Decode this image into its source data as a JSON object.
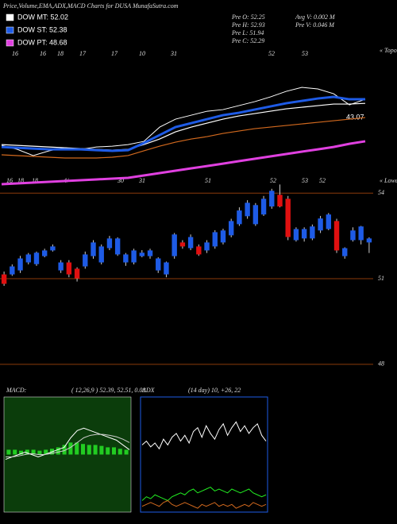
{
  "header": {
    "title": "Price,Volume,EMA,ADX,MACD Charts for DUSA MunafaSutra.com",
    "info": [
      "Pre  O: 52.25",
      "Pre  H: 52.93",
      "Pre  L: 51.94",
      "Pre  C: 52.29",
      "Avg  V: 0.002  M",
      "Pre  V: 0.046  M"
    ],
    "annotation": "43.07",
    "top_dates": [
      "16",
      "16",
      "18",
      "17",
      "17",
      "10",
      "31",
      "52",
      "53"
    ],
    "top_right": "« Topo",
    "bottom_dates": [
      "16",
      "18",
      "18",
      "4/",
      "30",
      "31",
      "51",
      "52",
      "53",
      "52"
    ],
    "bottom_right": "« Lowes"
  },
  "chart_data": [
    {
      "type": "line",
      "ylim": [
        44.69,
        56.93
      ],
      "series": [
        {
          "color": "#ffffff",
          "width": 1,
          "values": [
            48.32,
            47.97,
            47.42,
            47.84,
            48.11,
            47.97,
            48.18,
            48.25,
            48.39,
            48.67,
            49.93,
            50.63,
            50.98,
            51.33,
            51.47,
            51.82,
            52.17,
            52.59,
            53.08,
            53.43,
            53.29,
            52.87,
            51.89,
            52.38
          ]
        },
        {
          "color": "#d2691e",
          "width": 1.2,
          "values": [
            47.49,
            47.42,
            47.35,
            47.28,
            47.21,
            47.21,
            47.21,
            47.28,
            47.42,
            47.84,
            48.25,
            48.6,
            48.88,
            49.09,
            49.37,
            49.58,
            49.79,
            49.93,
            50.07,
            50.21,
            50.35,
            50.49,
            50.63,
            50.77
          ]
        },
        {
          "name": "DOW MT: 52.02",
          "color": "#ffffff",
          "width": 1.2,
          "values": [
            48.39,
            48.32,
            48.25,
            48.18,
            48.11,
            48.04,
            47.97,
            47.9,
            47.97,
            48.39,
            48.88,
            49.51,
            49.93,
            50.28,
            50.63,
            50.91,
            51.12,
            51.33,
            51.54,
            51.68,
            51.82,
            51.96,
            51.96,
            52.02
          ]
        },
        {
          "name": "DOW ST: 52.38",
          "color": "#1e5be6",
          "width": 3,
          "values": [
            48.18,
            48.11,
            48.04,
            47.97,
            47.97,
            47.97,
            47.9,
            47.84,
            47.9,
            48.53,
            49.23,
            49.93,
            50.28,
            50.63,
            50.98,
            51.19,
            51.47,
            51.75,
            52.03,
            52.24,
            52.45,
            52.59,
            52.38,
            52.38
          ]
        },
        {
          "name": "DOW PT: 48.68",
          "color": "#e040e0",
          "width": 3,
          "values": [
            44.9,
            44.97,
            45.04,
            45.11,
            45.18,
            45.25,
            45.32,
            45.39,
            45.46,
            45.67,
            45.88,
            46.09,
            46.3,
            46.5,
            46.71,
            46.93,
            47.14,
            47.35,
            47.56,
            47.77,
            47.97,
            48.18,
            48.46,
            48.68
          ]
        }
      ]
    },
    {
      "type": "candlestick",
      "ylim": [
        47.3,
        54.2
      ],
      "yticks": [
        54,
        51,
        48
      ],
      "grid": true,
      "grid_color": "#8b3a0a",
      "up_color": "#1e5be6",
      "down_color": "#e01010",
      "open": [
        51.15,
        51.15,
        51.29,
        51.57,
        51.51,
        51.79,
        51.99,
        51.29,
        51.57,
        51.35,
        51.43,
        51.79,
        51.57,
        52.07,
        51.85,
        51.57,
        51.57,
        51.79,
        51.79,
        51.29,
        51.15,
        51.79,
        52.27,
        52.07,
        52.13,
        51.99,
        52.13,
        52.27,
        52.52,
        52.91,
        53.19,
        52.91,
        53.25,
        53.53,
        53.94,
        53.8,
        52.35,
        52.41,
        52.41,
        52.69,
        52.74,
        53.02,
        51.79,
        52.35,
        52.35,
        52.27
      ],
      "high": [
        51.25,
        51.5,
        51.8,
        51.9,
        51.95,
        52.05,
        52.2,
        51.65,
        51.65,
        51.4,
        51.95,
        52.35,
        52.2,
        52.5,
        52.45,
        51.9,
        52.05,
        52.0,
        52.05,
        51.75,
        51.6,
        52.6,
        52.35,
        52.55,
        52.2,
        52.35,
        52.7,
        52.75,
        53.1,
        53.5,
        53.75,
        53.65,
        53.9,
        54.15,
        54.3,
        53.9,
        52.8,
        52.8,
        52.9,
        53.2,
        53.3,
        53.1,
        52.1,
        52.8,
        52.85,
        52.45
      ],
      "low": [
        50.75,
        51.1,
        51.2,
        51.5,
        51.45,
        51.75,
        51.95,
        51.2,
        51.05,
        50.9,
        51.35,
        51.7,
        51.5,
        52.0,
        51.8,
        51.45,
        51.5,
        51.75,
        51.7,
        51.2,
        51.05,
        51.7,
        52.05,
        52.0,
        51.8,
        51.9,
        52.05,
        52.2,
        52.45,
        52.85,
        53.1,
        52.85,
        53.2,
        53.45,
        53.5,
        52.35,
        52.3,
        52.3,
        52.35,
        52.6,
        52.7,
        51.9,
        51.7,
        52.3,
        52.2,
        51.9
      ],
      "close": [
        50.82,
        51.43,
        51.71,
        51.85,
        51.91,
        51.99,
        52.13,
        51.57,
        51.15,
        51.01,
        51.85,
        52.27,
        52.13,
        52.41,
        52.41,
        51.85,
        51.99,
        51.91,
        51.99,
        51.71,
        51.57,
        52.55,
        52.13,
        52.46,
        51.85,
        52.27,
        52.63,
        52.69,
        53.02,
        53.39,
        53.66,
        53.58,
        53.8,
        54.08,
        53.53,
        52.46,
        52.74,
        52.74,
        52.83,
        53.11,
        53.25,
        51.99,
        52.07,
        52.69,
        52.83,
        52.41
      ]
    },
    {
      "type": "macd",
      "label": "MACD:",
      "params": "( 12,26,9 ) 52.39, 52.51, 0.08",
      "ylim": [
        -1.2,
        1.2
      ],
      "background": "#0b3d0b",
      "series": [
        {
          "color": "#ffffff",
          "values": [
            -0.1,
            -0.05,
            0.0,
            0.05,
            0.0,
            -0.05,
            0.0,
            0.05,
            0.1,
            0.15,
            0.35,
            0.5,
            0.55,
            0.5,
            0.45,
            0.4,
            0.35,
            0.3,
            0.2,
            0.1
          ]
        },
        {
          "color": "#cccccc",
          "values": [
            -0.05,
            -0.05,
            -0.03,
            0.0,
            0.02,
            0.0,
            0.0,
            0.02,
            0.05,
            0.08,
            0.15,
            0.25,
            0.35,
            0.4,
            0.42,
            0.42,
            0.4,
            0.37,
            0.32,
            0.25
          ]
        }
      ],
      "histogram": {
        "color": "#22cc22",
        "values": [
          0.1,
          0.1,
          0.08,
          0.1,
          0.1,
          0.08,
          0.1,
          0.12,
          0.15,
          0.2,
          0.25,
          0.25,
          0.22,
          0.2,
          0.2,
          0.18,
          0.15,
          0.15,
          0.12,
          0.1
        ]
      }
    },
    {
      "type": "adx",
      "label": "ADX",
      "params": "(14  day) 10, +26, 22",
      "ylim": [
        0,
        60
      ],
      "background": "#000000",
      "border": "#1e5be6",
      "series": [
        {
          "color": "#ffffff",
          "values": [
            35,
            37,
            34,
            36,
            33,
            38,
            35,
            39,
            41,
            37,
            40,
            36,
            42,
            44,
            39,
            45,
            41,
            38,
            43,
            46,
            40,
            44,
            47,
            42,
            45,
            41,
            44,
            46,
            40,
            37
          ]
        },
        {
          "color": "#22ee22",
          "values": [
            6,
            8,
            7,
            9,
            8,
            7,
            6,
            8,
            9,
            10,
            9,
            11,
            12,
            10,
            11,
            12,
            13,
            11,
            12,
            11,
            10,
            12,
            11,
            10,
            11,
            12,
            10,
            9,
            8,
            9
          ]
        },
        {
          "color": "#d2691e",
          "values": [
            3,
            4,
            5,
            4,
            3,
            5,
            6,
            4,
            3,
            4,
            5,
            4,
            3,
            2,
            4,
            3,
            4,
            5,
            3,
            4,
            3,
            4,
            2,
            3,
            4,
            3,
            5,
            4,
            3,
            4
          ]
        }
      ]
    }
  ]
}
